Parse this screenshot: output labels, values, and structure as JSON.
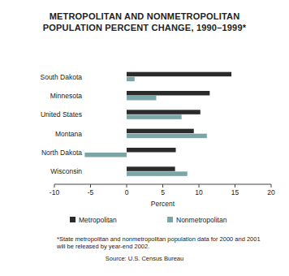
{
  "chart_data": {
    "type": "bar",
    "orientation": "horizontal",
    "title": "METROPOLITAN AND NONMETROPOLITAN POPULATION PERCENT CHANGE, 1990–1999*",
    "categories": [
      "South Dakota",
      "Minnesota",
      "United States",
      "Montana",
      "North Dakota",
      "Wisconsin"
    ],
    "series": [
      {
        "name": "Metropolitan",
        "color": "#2b2b2b",
        "values": [
          14.5,
          11.5,
          10.2,
          9.3,
          6.8,
          6.7
        ]
      },
      {
        "name": "Nonmetropolitan",
        "color": "#7ba6a7",
        "values": [
          1.1,
          4.1,
          7.6,
          11.1,
          -5.8,
          8.4
        ]
      }
    ],
    "xlabel": "Percent",
    "xlim": [
      -10,
      20
    ],
    "xticks": [
      -10,
      -5,
      0,
      5,
      10,
      15,
      20
    ],
    "grid": false,
    "legend": "bottom",
    "annotations": [
      "*State metropolitan and nonmetropolitan population data for 2000 and 2001 will be released by year-end 2002.",
      "Source: U.S. Census Bureau"
    ]
  }
}
